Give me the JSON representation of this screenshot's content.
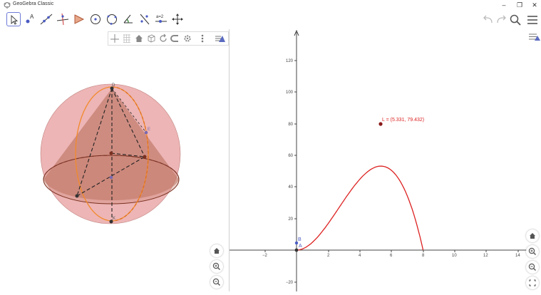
{
  "app": {
    "title": "GeoGebra Classic"
  },
  "window_controls": {
    "minimize": "–",
    "restore": "❐",
    "close": "✕"
  },
  "toolbar": {
    "tools": [
      {
        "name": "move-tool",
        "icon": "arrow-pointer-icon"
      },
      {
        "name": "point-tool",
        "icon": "point-icon"
      },
      {
        "name": "line-tool",
        "icon": "line-icon"
      },
      {
        "name": "perpendicular-tool",
        "icon": "perpendicular-icon"
      },
      {
        "name": "polygon-tool",
        "icon": "triangle-icon"
      },
      {
        "name": "circle-center-tool",
        "icon": "circle-center-icon"
      },
      {
        "name": "circle-points-tool",
        "icon": "circle-three-points-icon"
      },
      {
        "name": "angle-tool",
        "icon": "angle-icon"
      },
      {
        "name": "reflect-tool",
        "icon": "reflect-line-icon"
      },
      {
        "name": "slider-tool",
        "icon": "slider-icon",
        "label": "a=2"
      },
      {
        "name": "move-view-tool",
        "icon": "move-arrows-icon"
      }
    ]
  },
  "graphics2d": {
    "axes": {
      "x_ticks": [
        "−2",
        "2",
        "4",
        "6",
        "8",
        "10",
        "12",
        "14"
      ],
      "y_ticks": [
        "120",
        "100",
        "80",
        "60",
        "40",
        "20",
        "−20"
      ]
    },
    "point_L_label": "L = (5.331, 79.432)",
    "point_A_label": "A",
    "point_B_label": "B",
    "colors": {
      "curve": "#dd2222",
      "axis": "#444444"
    }
  },
  "graphics3d": {
    "labels": {
      "top": "D",
      "right": "E",
      "bottom": "K"
    },
    "colors": {
      "sphere": "#e8a0a0",
      "cone": "#b46a55",
      "orange": "#f28a2b"
    }
  }
}
